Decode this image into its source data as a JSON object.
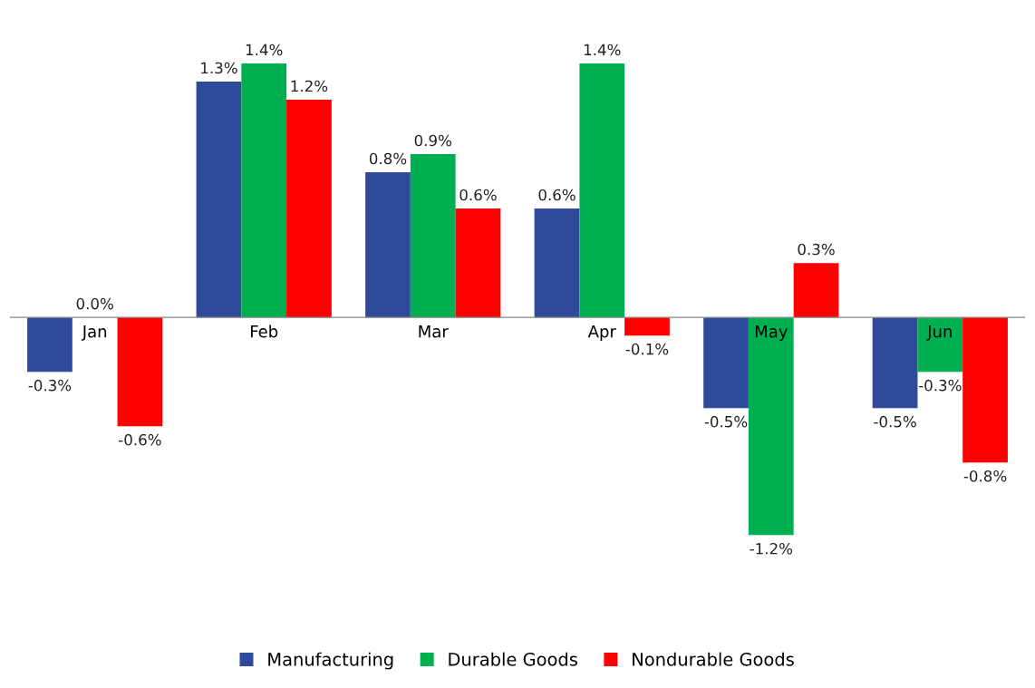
{
  "chart_data": {
    "type": "bar",
    "categories": [
      "Jan",
      "Feb",
      "Mar",
      "Apr",
      "May",
      "Jun"
    ],
    "series": [
      {
        "name": "Manufacturing",
        "color": "#2e4a9a",
        "values": [
          -0.3,
          1.3,
          0.8,
          0.6,
          -0.5,
          -0.5
        ],
        "value_labels": [
          "-0.3%",
          "1.3%",
          "0.8%",
          "0.6%",
          "-0.5%",
          "-0.5%"
        ]
      },
      {
        "name": "Durable Goods",
        "color": "#00b050",
        "values": [
          0.0,
          1.4,
          0.9,
          1.4,
          -1.2,
          -0.3
        ],
        "value_labels": [
          "0.0%",
          "1.4%",
          "0.9%",
          "1.4%",
          "-1.2%",
          "-0.3%"
        ]
      },
      {
        "name": "Nondurable Goods",
        "color": "#ff0000",
        "values": [
          -0.6,
          1.2,
          0.6,
          -0.1,
          0.3,
          -0.8
        ],
        "value_labels": [
          "-0.6%",
          "1.2%",
          "0.6%",
          "-0.1%",
          "0.3%",
          "-0.8%"
        ]
      }
    ],
    "legend": "bottom",
    "grid": false,
    "tick_labels": "x"
  }
}
